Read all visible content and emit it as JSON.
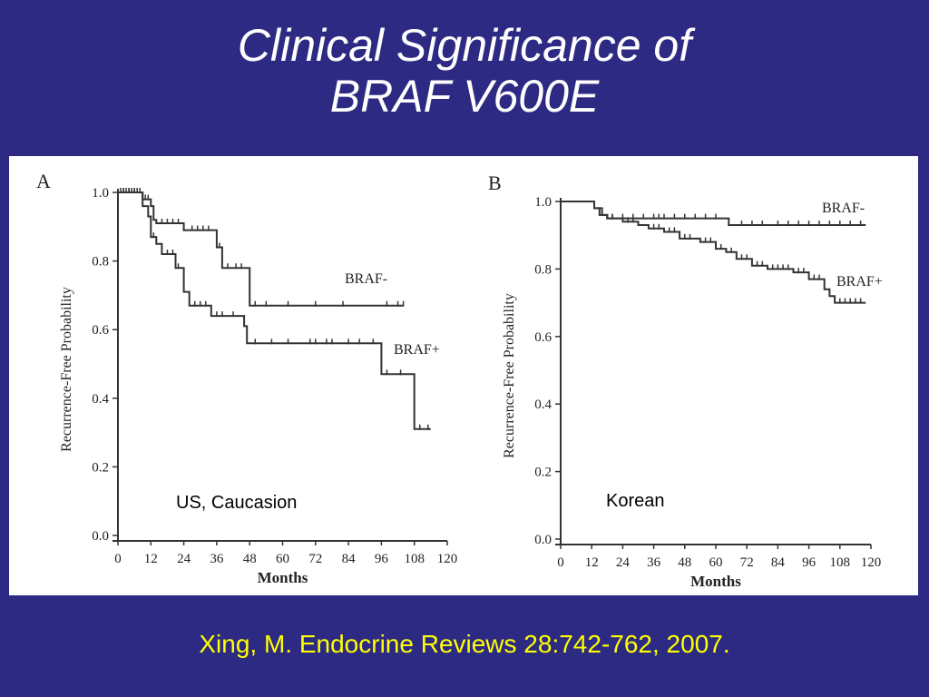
{
  "title": {
    "line1": "Clinical Significance of",
    "line2": "BRAF V600E"
  },
  "citation": "Xing, M. Endocrine Reviews 28:742-762, 2007.",
  "colors": {
    "background": "#2d2a84",
    "title": "#ffffff",
    "citation": "#ffff00",
    "panel": "#ffffff",
    "curve": "#333333"
  },
  "chart_data": [
    {
      "type": "line",
      "panel_label": "A",
      "annotation": "US, Caucasion",
      "xlabel": "Months",
      "ylabel": "Recurrence-Free Probability",
      "xlim": [
        0,
        120
      ],
      "ylim": [
        0,
        1.0
      ],
      "xticks": [
        0,
        12,
        24,
        36,
        48,
        60,
        72,
        84,
        96,
        108,
        120
      ],
      "yticks": [
        0.0,
        0.2,
        0.4,
        0.6,
        0.8,
        1.0
      ],
      "grid": false,
      "series": [
        {
          "name": "BRAF-",
          "points": [
            [
              0,
              1.0
            ],
            [
              9,
              1.0
            ],
            [
              9,
              0.98
            ],
            [
              12,
              0.98
            ],
            [
              12,
              0.96
            ],
            [
              13,
              0.96
            ],
            [
              13,
              0.92
            ],
            [
              14,
              0.92
            ],
            [
              14,
              0.91
            ],
            [
              24,
              0.91
            ],
            [
              24,
              0.89
            ],
            [
              36,
              0.89
            ],
            [
              36,
              0.84
            ],
            [
              38,
              0.84
            ],
            [
              38,
              0.78
            ],
            [
              48,
              0.78
            ],
            [
              48,
              0.67
            ],
            [
              104,
              0.67
            ]
          ],
          "censor_x": [
            1,
            2,
            3,
            4,
            5,
            6,
            7,
            8,
            10,
            11,
            16,
            18,
            20,
            22,
            24,
            27,
            29,
            31,
            33,
            37,
            40,
            43,
            45,
            50,
            54,
            62,
            72,
            82,
            98,
            102,
            104
          ]
        },
        {
          "name": "BRAF+",
          "points": [
            [
              0,
              1.0
            ],
            [
              9,
              1.0
            ],
            [
              9,
              0.96
            ],
            [
              11,
              0.96
            ],
            [
              11,
              0.93
            ],
            [
              12,
              0.93
            ],
            [
              12,
              0.87
            ],
            [
              14,
              0.87
            ],
            [
              14,
              0.85
            ],
            [
              16,
              0.85
            ],
            [
              16,
              0.82
            ],
            [
              21,
              0.82
            ],
            [
              21,
              0.78
            ],
            [
              24,
              0.78
            ],
            [
              24,
              0.71
            ],
            [
              26,
              0.71
            ],
            [
              26,
              0.67
            ],
            [
              34,
              0.67
            ],
            [
              34,
              0.64
            ],
            [
              46,
              0.64
            ],
            [
              46,
              0.61
            ],
            [
              47,
              0.61
            ],
            [
              47,
              0.56
            ],
            [
              96,
              0.56
            ],
            [
              96,
              0.47
            ],
            [
              108,
              0.47
            ],
            [
              108,
              0.31
            ],
            [
              114,
              0.31
            ]
          ],
          "censor_x": [
            2,
            4,
            6,
            13,
            18,
            20,
            22,
            28,
            30,
            32,
            36,
            38,
            42,
            50,
            56,
            62,
            70,
            72,
            76,
            78,
            84,
            88,
            93,
            98,
            103,
            110,
            113
          ]
        }
      ]
    },
    {
      "type": "line",
      "panel_label": "B",
      "annotation": "Korean",
      "xlabel": "Months",
      "ylabel": "Recurrence-Free Probability",
      "xlim": [
        0,
        120
      ],
      "ylim": [
        0,
        1.0
      ],
      "xticks": [
        0,
        12,
        24,
        36,
        48,
        60,
        72,
        84,
        96,
        108,
        120
      ],
      "yticks": [
        0.0,
        0.2,
        0.4,
        0.6,
        0.8,
        1.0
      ],
      "grid": false,
      "series": [
        {
          "name": "BRAF-",
          "points": [
            [
              0,
              1.0
            ],
            [
              13,
              1.0
            ],
            [
              13,
              0.98
            ],
            [
              15,
              0.98
            ],
            [
              15,
              0.96
            ],
            [
              18,
              0.96
            ],
            [
              18,
              0.95
            ],
            [
              65,
              0.95
            ],
            [
              65,
              0.93
            ],
            [
              118,
              0.93
            ]
          ],
          "censor_x": [
            20,
            24,
            28,
            32,
            36,
            38,
            40,
            44,
            48,
            52,
            56,
            60,
            70,
            74,
            78,
            84,
            88,
            92,
            96,
            100,
            104,
            108,
            112,
            116
          ]
        },
        {
          "name": "BRAF+",
          "points": [
            [
              0,
              1.0
            ],
            [
              13,
              1.0
            ],
            [
              13,
              0.98
            ],
            [
              16,
              0.98
            ],
            [
              16,
              0.96
            ],
            [
              18,
              0.96
            ],
            [
              18,
              0.95
            ],
            [
              24,
              0.95
            ],
            [
              24,
              0.94
            ],
            [
              30,
              0.94
            ],
            [
              30,
              0.93
            ],
            [
              34,
              0.93
            ],
            [
              34,
              0.92
            ],
            [
              40,
              0.92
            ],
            [
              40,
              0.91
            ],
            [
              46,
              0.91
            ],
            [
              46,
              0.89
            ],
            [
              54,
              0.89
            ],
            [
              54,
              0.88
            ],
            [
              60,
              0.88
            ],
            [
              60,
              0.86
            ],
            [
              64,
              0.86
            ],
            [
              64,
              0.85
            ],
            [
              68,
              0.85
            ],
            [
              68,
              0.83
            ],
            [
              74,
              0.83
            ],
            [
              74,
              0.81
            ],
            [
              80,
              0.81
            ],
            [
              80,
              0.8
            ],
            [
              90,
              0.8
            ],
            [
              90,
              0.79
            ],
            [
              96,
              0.79
            ],
            [
              96,
              0.77
            ],
            [
              102,
              0.77
            ],
            [
              102,
              0.74
            ],
            [
              104,
              0.74
            ],
            [
              104,
              0.72
            ],
            [
              106,
              0.72
            ],
            [
              106,
              0.7
            ],
            [
              118,
              0.7
            ]
          ],
          "censor_x": [
            20,
            26,
            28,
            36,
            38,
            42,
            44,
            48,
            50,
            56,
            58,
            62,
            66,
            70,
            72,
            76,
            78,
            82,
            84,
            86,
            88,
            92,
            94,
            98,
            100,
            108,
            110,
            112,
            114,
            116
          ]
        }
      ]
    }
  ]
}
